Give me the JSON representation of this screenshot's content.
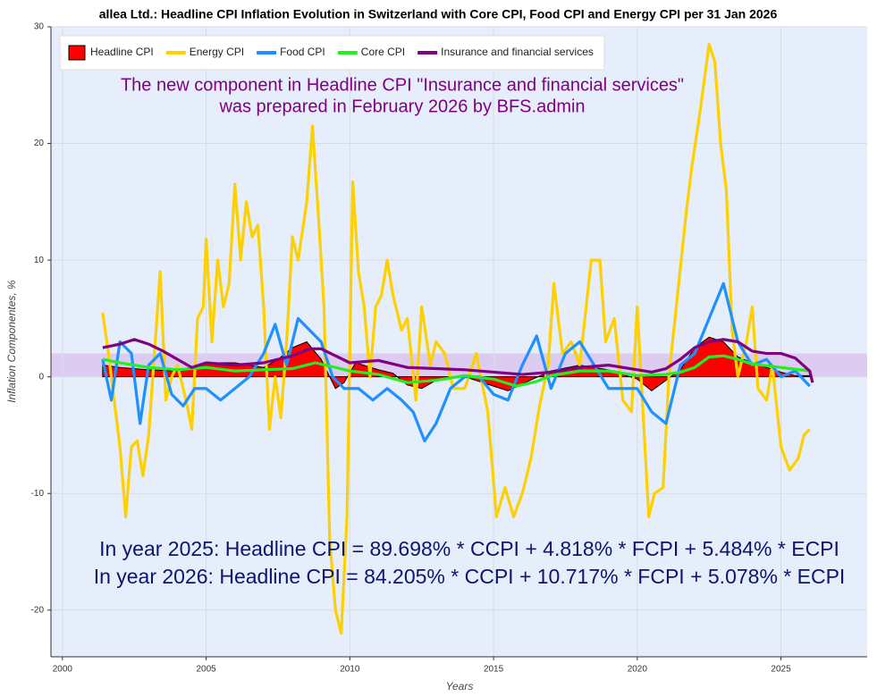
{
  "chart_data": {
    "type": "line",
    "title": "allea Ltd.: Headline CPI Inflation Evolution in Switzerland with Core CPI, Food CPI and Energy CPI per 31 Jan 2026",
    "x_label": "Years",
    "y_label": "Inflation Componentes, %",
    "xlim": [
      1999.6,
      2028
    ],
    "ylim": [
      -24,
      30
    ],
    "xticks": [
      2000,
      2005,
      2010,
      2015,
      2020,
      2025
    ],
    "yticks": [
      -20,
      -10,
      0,
      10,
      20,
      30
    ],
    "grid": true,
    "legend": "upper left",
    "reference_band": [
      0,
      2
    ],
    "reference_band_color": "#d9c6f0",
    "annotations": [
      "The new component in Headline CPI \"Insurance and financial services\"",
      "was prepared in February 2026 by BFS.admin"
    ],
    "annotation_color": "#800080",
    "formulas": [
      "In year 2025: Headline CPI = 89.698% * CCPI +  4.818% * FCPI + 5.484% * ECPI",
      "In year 2026: Headline CPI = 84.205% * CCPI + 10.717% * FCPI + 5.078% * ECPI"
    ],
    "formula_color": "#0a1670",
    "series": [
      {
        "name": "Headline CPI",
        "color": "#ff0000",
        "style": "area",
        "x": [
          2001.4,
          2002,
          2003,
          2004,
          2005,
          2006,
          2007,
          2007.5,
          2008,
          2008.5,
          2009,
          2009.5,
          2009.8,
          2010.2,
          2011,
          2011.5,
          2012,
          2012.5,
          2013,
          2014,
          2015,
          2015.5,
          2016,
          2017,
          2018,
          2019,
          2020,
          2020.5,
          2021,
          2021.5,
          2022,
          2022.5,
          2023,
          2023.5,
          2024,
          2025,
          2025.5,
          2026
        ],
        "values": [
          1.0,
          0.8,
          0.6,
          0.5,
          1.2,
          1.2,
          0.8,
          1.5,
          2.5,
          3.0,
          1.5,
          -1.0,
          -0.5,
          1.2,
          0.6,
          0.3,
          -0.7,
          -1.0,
          -0.3,
          0.0,
          -0.8,
          -1.2,
          -0.6,
          0.5,
          1.0,
          0.6,
          -0.2,
          -1.2,
          -0.3,
          0.6,
          2.5,
          3.4,
          3.0,
          1.7,
          1.2,
          0.4,
          0.1,
          0.1
        ]
      },
      {
        "name": "Energy CPI",
        "color": "#ffd000",
        "style": "line",
        "x": [
          2001.4,
          2001.6,
          2001.8,
          2002.0,
          2002.2,
          2002.4,
          2002.6,
          2002.8,
          2003.0,
          2003.2,
          2003.4,
          2003.6,
          2003.8,
          2004.0,
          2004.3,
          2004.5,
          2004.7,
          2004.9,
          2005.0,
          2005.2,
          2005.4,
          2005.6,
          2005.8,
          2006.0,
          2006.2,
          2006.4,
          2006.6,
          2006.8,
          2007.0,
          2007.2,
          2007.4,
          2007.6,
          2007.8,
          2008.0,
          2008.2,
          2008.5,
          2008.7,
          2008.9,
          2009.1,
          2009.3,
          2009.5,
          2009.7,
          2009.9,
          2010.1,
          2010.3,
          2010.5,
          2010.7,
          2010.9,
          2011.1,
          2011.3,
          2011.5,
          2011.8,
          2012.0,
          2012.3,
          2012.5,
          2012.8,
          2013.0,
          2013.3,
          2013.6,
          2014.0,
          2014.4,
          2014.8,
          2015.1,
          2015.4,
          2015.7,
          2016.0,
          2016.3,
          2016.6,
          2016.9,
          2017.1,
          2017.4,
          2017.7,
          2018.0,
          2018.4,
          2018.7,
          2018.9,
          2019.2,
          2019.5,
          2019.8,
          2020.0,
          2020.2,
          2020.4,
          2020.6,
          2020.9,
          2021.1,
          2021.4,
          2021.7,
          2021.9,
          2022.2,
          2022.5,
          2022.7,
          2022.9,
          2023.1,
          2023.3,
          2023.5,
          2023.8,
          2024.0,
          2024.2,
          2024.5,
          2024.7,
          2025.0,
          2025.3,
          2025.6,
          2025.8,
          2026.0
        ],
        "values": [
          5.5,
          2,
          -2,
          -6,
          -12,
          -6,
          -5.5,
          -8.5,
          -5,
          2,
          9,
          -2,
          0,
          1,
          -2,
          -4.5,
          5,
          6,
          11.8,
          3,
          10,
          6,
          8,
          16.5,
          10,
          15,
          12,
          13,
          6,
          -4.5,
          0,
          -3.5,
          3,
          12,
          10,
          15,
          21.5,
          14,
          6,
          -14,
          -20,
          -22,
          -12,
          16.7,
          9,
          6,
          0,
          6,
          7,
          10,
          7,
          4,
          5,
          -2,
          6,
          1,
          3,
          2,
          -1,
          -1,
          2,
          -3,
          -12,
          -9.5,
          -12,
          -10,
          -7,
          -2.5,
          1,
          8,
          2,
          3,
          1,
          10,
          10,
          3,
          5,
          -2,
          -3,
          6,
          -3,
          -12,
          -10,
          -9.5,
          0,
          7,
          14,
          18,
          23,
          28.5,
          27,
          20,
          16,
          4,
          0,
          3,
          6,
          -1,
          -2,
          1,
          -6,
          -8,
          -7,
          -5,
          -4.5
        ]
      },
      {
        "name": "Food CPI",
        "color": "#1e90ff",
        "style": "line",
        "x": [
          2001.4,
          2001.7,
          2002.0,
          2002.4,
          2002.7,
          2003.0,
          2003.4,
          2003.8,
          2004.2,
          2004.6,
          2005.0,
          2005.5,
          2006.0,
          2006.5,
          2007.0,
          2007.4,
          2007.8,
          2008.2,
          2008.6,
          2009.0,
          2009.4,
          2009.8,
          2010.3,
          2010.8,
          2011.3,
          2011.8,
          2012.2,
          2012.6,
          2013.0,
          2013.5,
          2014.0,
          2014.5,
          2015.0,
          2015.5,
          2016.0,
          2016.5,
          2017.0,
          2017.5,
          2018.0,
          2018.5,
          2019.0,
          2019.5,
          2020.0,
          2020.5,
          2021.0,
          2021.5,
          2022.0,
          2022.5,
          2023.0,
          2023.5,
          2024.0,
          2024.5,
          2025.0,
          2025.5,
          2026.0
        ],
        "values": [
          1.5,
          -2,
          3,
          2,
          -4,
          1,
          2,
          -1.5,
          -2.5,
          -1,
          -1,
          -2,
          -1,
          0,
          2,
          4.5,
          1,
          5,
          4,
          3,
          0,
          -1,
          -1,
          -2,
          -1,
          -2,
          -3,
          -5.5,
          -4,
          -1,
          0,
          0,
          -1.5,
          -2,
          1,
          3.5,
          -1,
          2,
          3,
          1,
          -1,
          -1,
          -1,
          -3,
          -4,
          1,
          2,
          5,
          8,
          3,
          1,
          1.5,
          0,
          0.5,
          -0.8
        ]
      },
      {
        "name": "Core CPI",
        "color": "#22ee22",
        "style": "line",
        "x": [
          2001.4,
          2002,
          2003,
          2004,
          2005,
          2006,
          2007,
          2008,
          2008.8,
          2009.5,
          2010,
          2011,
          2012,
          2013,
          2014,
          2015,
          2015.8,
          2016.5,
          2017,
          2018,
          2019,
          2020,
          2021,
          2021.5,
          2022,
          2022.5,
          2023,
          2023.5,
          2024,
          2025,
          2026
        ],
        "values": [
          1.5,
          1.2,
          0.8,
          0.6,
          0.8,
          0.5,
          0.6,
          0.7,
          1.2,
          0.8,
          0.5,
          0.2,
          -0.5,
          -0.3,
          0.1,
          -0.2,
          -0.8,
          -0.4,
          0.1,
          0.5,
          0.5,
          0.1,
          0.2,
          0.4,
          0.8,
          1.7,
          1.8,
          1.5,
          1.1,
          0.8,
          0.5
        ]
      },
      {
        "name": "Insurance and financial services",
        "color": "#800080",
        "style": "line",
        "x": [
          2001.4,
          2002,
          2002.5,
          2003,
          2003.5,
          2004,
          2004.5,
          2005,
          2006,
          2007,
          2008,
          2008.6,
          2009,
          2009.5,
          2010,
          2011,
          2012,
          2013,
          2014,
          2015,
          2016,
          2017,
          2018,
          2019,
          2020,
          2020.5,
          2021,
          2021.5,
          2022,
          2022.5,
          2023,
          2023.5,
          2024,
          2024.5,
          2025,
          2025.5,
          2026,
          2026.1
        ],
        "values": [
          2.5,
          2.8,
          3.2,
          2.8,
          2.2,
          1.5,
          0.8,
          1.2,
          1.0,
          1.2,
          1.8,
          2.4,
          2.4,
          1.8,
          1.2,
          1.4,
          0.8,
          0.7,
          0.6,
          0.4,
          0.2,
          0.4,
          0.8,
          1.0,
          0.6,
          0.4,
          0.7,
          1.5,
          2.5,
          3.0,
          3.2,
          3.0,
          2.2,
          2.0,
          2.0,
          1.6,
          0.5,
          -0.5
        ]
      }
    ]
  }
}
